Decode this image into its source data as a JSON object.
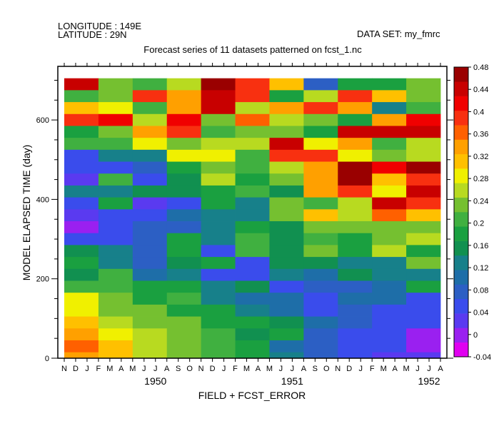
{
  "header": {
    "longitude": "LONGITUDE : 149E",
    "latitude": "LATITUDE : 29N",
    "dataset": "DATA SET: my_fmrc"
  },
  "chart_data": {
    "type": "heatmap",
    "title": "Forecast series of 11 datasets patterned on fcst_1.nc",
    "xlabel": "FIELD + FCST_ERROR",
    "ylabel": "MODEL ELAPSED TIME (day)",
    "x_month_labels": [
      "N",
      "D",
      "J",
      "F",
      "M",
      "A",
      "M",
      "J",
      "J",
      "A",
      "S",
      "O",
      "N",
      "D",
      "J",
      "F",
      "M",
      "A",
      "M",
      "J",
      "J",
      "A",
      "S",
      "O",
      "N",
      "D",
      "J",
      "F",
      "M",
      "A",
      "M",
      "J",
      "J",
      "A"
    ],
    "x_year_labels": [
      "1950",
      "1951",
      "1952"
    ],
    "x_year_center_month_index": [
      8,
      20,
      32
    ],
    "y_ticks": [
      0,
      200,
      400,
      600
    ],
    "ylim": [
      0,
      735
    ],
    "row_height_days": 30,
    "colorbar_ticks": [
      "-0.04",
      "0",
      "0.04",
      "0.08",
      "0.12",
      "0.16",
      "0.2",
      "0.24",
      "0.28",
      "0.32",
      "0.36",
      "0.4",
      "0.44",
      "0.48"
    ],
    "color_range": [
      -0.04,
      0.48
    ],
    "palette": [
      "#e000f0",
      "#9a20f0",
      "#5a3af0",
      "#3a4cec",
      "#2c5fc4",
      "#1e6ea8",
      "#17808a",
      "#119050",
      "#1aa040",
      "#40b040",
      "#75c030",
      "#b8da20",
      "#f0f000",
      "#ffc000",
      "#ffa000",
      "#ff6000",
      "#f83010",
      "#f00000",
      "#c80000",
      "#9a0000"
    ],
    "grid_rows_top_to_bottom": [
      [
        0.45,
        0.245,
        0.205,
        0.25,
        0.47,
        0.38,
        0.32,
        0.08,
        0.19,
        0.17,
        0.23
      ],
      [
        0.21,
        0.24,
        0.39,
        0.34,
        0.45,
        0.38,
        0.19,
        0.25,
        0.39,
        0.3,
        0.22
      ],
      [
        0.3,
        0.29,
        0.21,
        0.34,
        0.44,
        0.27,
        0.34,
        0.38,
        0.34,
        0.13,
        0.21
      ],
      [
        0.39,
        0.41,
        0.26,
        0.42,
        0.24,
        0.37,
        0.25,
        0.23,
        0.17,
        0.35,
        0.41
      ],
      [
        0.19,
        0.24,
        0.35,
        0.39,
        0.21,
        0.22,
        0.24,
        0.19,
        0.44,
        0.44,
        0.44
      ],
      [
        0.21,
        0.21,
        0.29,
        0.24,
        0.25,
        0.25,
        0.44,
        0.28,
        0.33,
        0.21,
        0.26
      ],
      [
        0.04,
        0.12,
        0.12,
        0.28,
        0.29,
        0.21,
        0.38,
        0.39,
        0.28,
        0.23,
        0.25
      ],
      [
        0.06,
        0.05,
        0.08,
        0.19,
        0.23,
        0.21,
        0.26,
        0.33,
        0.47,
        0.41,
        0.46
      ],
      [
        0.02,
        0.2,
        0.05,
        0.15,
        0.27,
        0.17,
        0.24,
        0.33,
        0.47,
        0.3,
        0.38
      ],
      [
        0.14,
        0.12,
        0.16,
        0.16,
        0.19,
        0.2,
        0.16,
        0.33,
        0.4,
        0.28,
        0.44
      ],
      [
        0.06,
        0.17,
        0.02,
        0.06,
        0.17,
        0.13,
        0.22,
        0.2,
        0.25,
        0.44,
        0.39
      ],
      [
        0.02,
        0.05,
        0.06,
        0.09,
        0.14,
        0.12,
        0.22,
        0.3,
        0.25,
        0.37,
        0.3
      ],
      [
        0.0,
        0.05,
        0.07,
        0.07,
        0.12,
        0.19,
        0.15,
        0.22,
        0.23,
        0.22,
        0.24
      ],
      [
        0.05,
        0.05,
        0.08,
        0.17,
        0.14,
        0.21,
        0.15,
        0.21,
        0.17,
        0.24,
        0.26
      ],
      [
        0.15,
        0.13,
        0.08,
        0.17,
        0.06,
        0.21,
        0.16,
        0.24,
        0.19,
        0.27,
        0.17
      ],
      [
        0.17,
        0.14,
        0.08,
        0.16,
        0.17,
        0.05,
        0.16,
        0.16,
        0.13,
        0.13,
        0.22
      ],
      [
        0.15,
        0.21,
        0.1,
        0.14,
        0.06,
        0.05,
        0.12,
        0.1,
        0.16,
        0.12,
        0.13
      ],
      [
        0.2,
        0.2,
        0.18,
        0.19,
        0.13,
        0.16,
        0.05,
        0.08,
        0.08,
        0.09,
        0.17
      ],
      [
        0.28,
        0.22,
        0.17,
        0.21,
        0.13,
        0.09,
        0.11,
        0.06,
        0.11,
        0.11,
        0.05
      ],
      [
        0.29,
        0.24,
        0.24,
        0.18,
        0.17,
        0.13,
        0.11,
        0.06,
        0.08,
        0.05,
        0.04
      ],
      [
        0.3,
        0.27,
        0.24,
        0.23,
        0.19,
        0.17,
        0.16,
        0.1,
        0.08,
        0.05,
        0.04
      ],
      [
        0.33,
        0.29,
        0.26,
        0.24,
        0.2,
        0.16,
        0.17,
        0.07,
        0.05,
        0.05,
        0.01
      ],
      [
        0.36,
        0.3,
        0.27,
        0.24,
        0.21,
        0.17,
        0.11,
        0.08,
        0.05,
        0.04,
        0.01
      ],
      [
        0.33,
        0.31,
        0.26,
        0.24,
        0.21,
        0.17,
        0.12,
        0.08,
        0.04,
        0.03,
        0.02
      ]
    ]
  }
}
